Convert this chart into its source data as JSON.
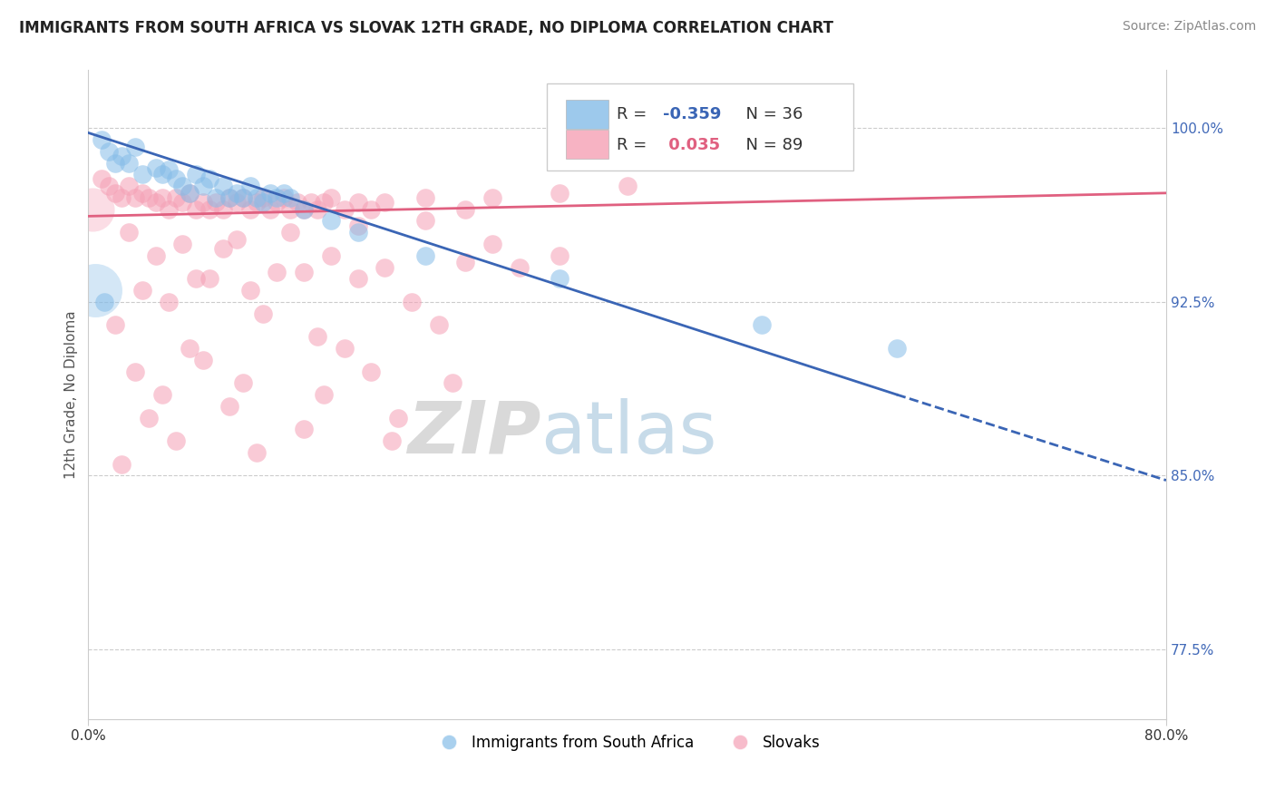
{
  "title": "IMMIGRANTS FROM SOUTH AFRICA VS SLOVAK 12TH GRADE, NO DIPLOMA CORRELATION CHART",
  "source": "Source: ZipAtlas.com",
  "ylabel": "12th Grade, No Diploma",
  "xlim": [
    0.0,
    80.0
  ],
  "ylim": [
    74.5,
    102.5
  ],
  "y_ticks": [
    77.5,
    85.0,
    92.5,
    100.0
  ],
  "x_ticks": [
    0.0,
    80.0
  ],
  "legend_blue_r": "-0.359",
  "legend_blue_n": "36",
  "legend_pink_r": "0.035",
  "legend_pink_n": "89",
  "legend_label_blue": "Immigrants from South Africa",
  "legend_label_pink": "Slovaks",
  "blue_color": "#85bce8",
  "pink_color": "#f5a0b5",
  "blue_line_color": "#3a65b5",
  "pink_line_color": "#e06080",
  "watermark_zip": "ZIP",
  "watermark_atlas": "atlas",
  "blue_scatter_x": [
    1.0,
    1.5,
    2.0,
    2.5,
    3.0,
    3.5,
    4.0,
    5.0,
    5.5,
    6.0,
    6.5,
    7.0,
    7.5,
    8.0,
    8.5,
    9.0,
    9.5,
    10.0,
    10.5,
    11.0,
    11.5,
    12.0,
    12.5,
    13.0,
    13.5,
    14.0,
    14.5,
    15.0,
    16.0,
    18.0,
    20.0,
    25.0,
    35.0,
    50.0,
    60.0,
    1.2
  ],
  "blue_scatter_y": [
    99.5,
    99.0,
    98.5,
    98.8,
    98.5,
    99.2,
    98.0,
    98.3,
    98.0,
    98.2,
    97.8,
    97.5,
    97.2,
    98.0,
    97.5,
    97.8,
    97.0,
    97.5,
    97.0,
    97.2,
    97.0,
    97.5,
    97.0,
    96.8,
    97.2,
    97.0,
    97.2,
    97.0,
    96.5,
    96.0,
    95.5,
    94.5,
    93.5,
    91.5,
    90.5,
    92.5
  ],
  "blue_large_x": [
    0.5
  ],
  "blue_large_y": [
    93.0
  ],
  "pink_scatter_x": [
    1.0,
    1.5,
    2.0,
    2.5,
    3.0,
    3.5,
    4.0,
    4.5,
    5.0,
    5.5,
    6.0,
    6.5,
    7.0,
    7.5,
    8.0,
    8.5,
    9.0,
    9.5,
    10.0,
    10.5,
    11.0,
    11.5,
    12.0,
    12.5,
    13.0,
    13.5,
    14.0,
    14.5,
    15.0,
    15.5,
    16.0,
    16.5,
    17.0,
    17.5,
    18.0,
    19.0,
    20.0,
    21.0,
    22.0,
    25.0,
    28.0,
    30.0,
    35.0,
    40.0,
    3.0,
    7.0,
    11.0,
    15.0,
    20.0,
    25.0,
    5.0,
    10.0,
    18.0,
    30.0,
    8.0,
    14.0,
    22.0,
    35.0,
    4.0,
    9.0,
    16.0,
    28.0,
    6.0,
    12.0,
    20.0,
    32.0,
    2.0,
    13.0,
    24.0,
    7.5,
    17.0,
    26.0,
    3.5,
    8.5,
    19.0,
    5.5,
    11.5,
    21.0,
    4.5,
    10.5,
    17.5,
    27.0,
    6.5,
    16.0,
    23.0,
    2.5,
    12.5,
    22.5
  ],
  "pink_scatter_y": [
    97.8,
    97.5,
    97.2,
    97.0,
    97.5,
    97.0,
    97.2,
    97.0,
    96.8,
    97.0,
    96.5,
    97.0,
    96.8,
    97.2,
    96.5,
    96.8,
    96.5,
    96.8,
    96.5,
    97.0,
    96.8,
    97.0,
    96.5,
    96.8,
    97.0,
    96.5,
    96.8,
    97.0,
    96.5,
    96.8,
    96.5,
    96.8,
    96.5,
    96.8,
    97.0,
    96.5,
    96.8,
    96.5,
    96.8,
    97.0,
    96.5,
    97.0,
    97.2,
    97.5,
    95.5,
    95.0,
    95.2,
    95.5,
    95.8,
    96.0,
    94.5,
    94.8,
    94.5,
    95.0,
    93.5,
    93.8,
    94.0,
    94.5,
    93.0,
    93.5,
    93.8,
    94.2,
    92.5,
    93.0,
    93.5,
    94.0,
    91.5,
    92.0,
    92.5,
    90.5,
    91.0,
    91.5,
    89.5,
    90.0,
    90.5,
    88.5,
    89.0,
    89.5,
    87.5,
    88.0,
    88.5,
    89.0,
    86.5,
    87.0,
    87.5,
    85.5,
    86.0,
    86.5
  ],
  "blue_trendline_x0": 0.0,
  "blue_trendline_y0": 99.8,
  "blue_trendline_x1": 60.0,
  "blue_trendline_y1": 88.5,
  "blue_trendline_dash_x1": 80.0,
  "blue_trendline_dash_y1": 84.8,
  "pink_trendline_x0": 0.0,
  "pink_trendline_y0": 96.2,
  "pink_trendline_x1": 80.0,
  "pink_trendline_y1": 97.2,
  "title_fontsize": 12,
  "source_fontsize": 10,
  "axis_label_fontsize": 11,
  "tick_fontsize": 11,
  "legend_fontsize": 13
}
